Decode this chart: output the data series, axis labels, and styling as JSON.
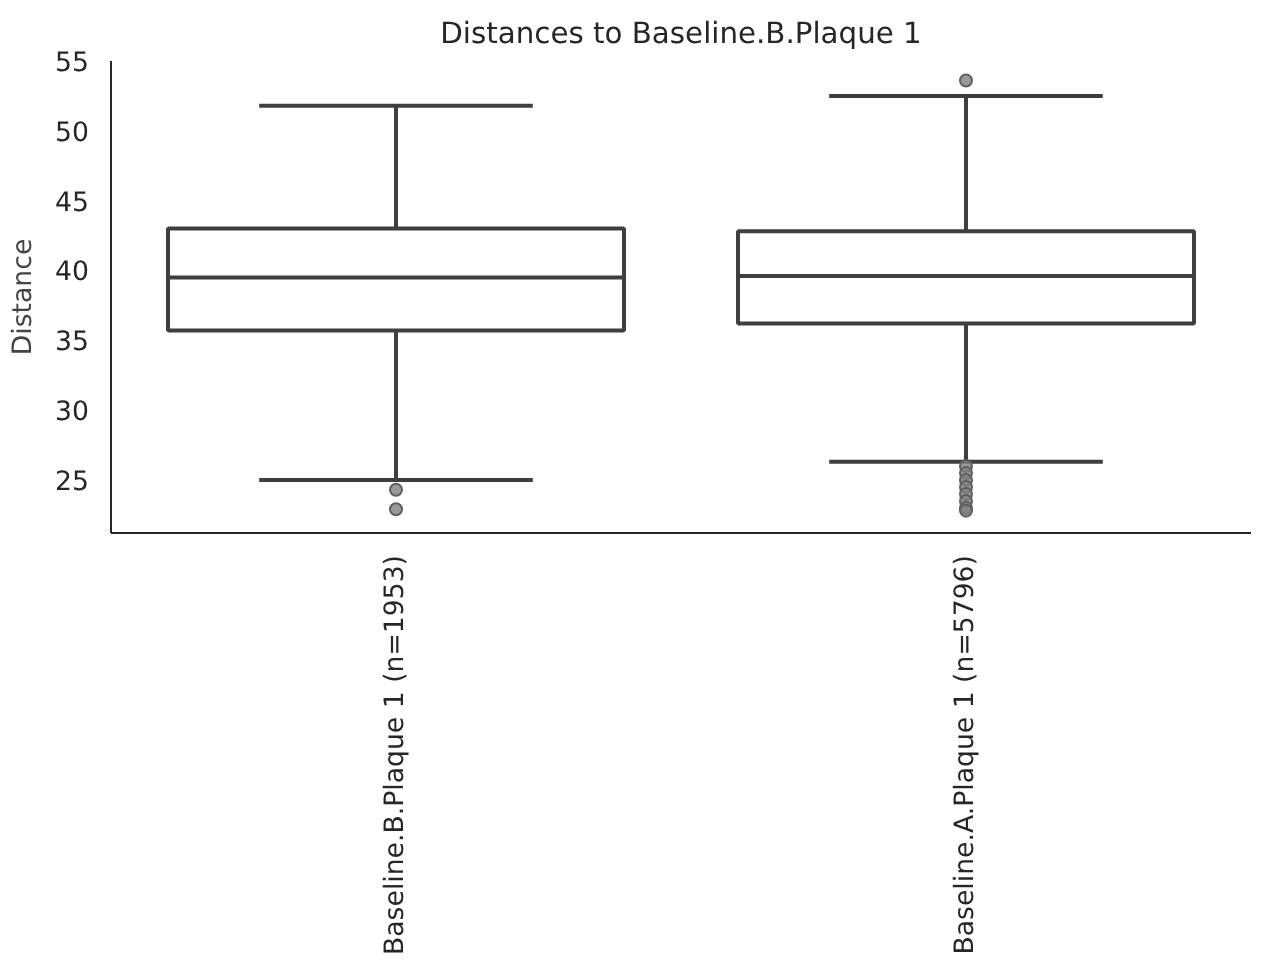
{
  "chart_data": {
    "type": "box",
    "title": "Distances to Baseline.B.Plaque 1",
    "ylabel": "Distance",
    "categories": [
      "Baseline.B.Plaque 1 (n=1953)",
      "Baseline.A.Plaque 1 (n=5796)"
    ],
    "boxes": [
      {
        "low": 25.0,
        "q1": 35.7,
        "median": 39.5,
        "q3": 43.0,
        "high": 51.8,
        "outliers": [
          24.3,
          22.9
        ]
      },
      {
        "low": 26.3,
        "q1": 36.2,
        "median": 39.6,
        "q3": 42.8,
        "high": 52.5,
        "outliers": [
          53.6,
          26.0,
          25.5,
          25.0,
          24.5,
          24.0,
          23.5,
          23.0,
          22.8
        ]
      }
    ],
    "color": "#3f3f3f",
    "ylim": [
      21.2,
      55
    ],
    "yticks": [
      25,
      30,
      35,
      40,
      45,
      50,
      55
    ],
    "grid": false
  }
}
